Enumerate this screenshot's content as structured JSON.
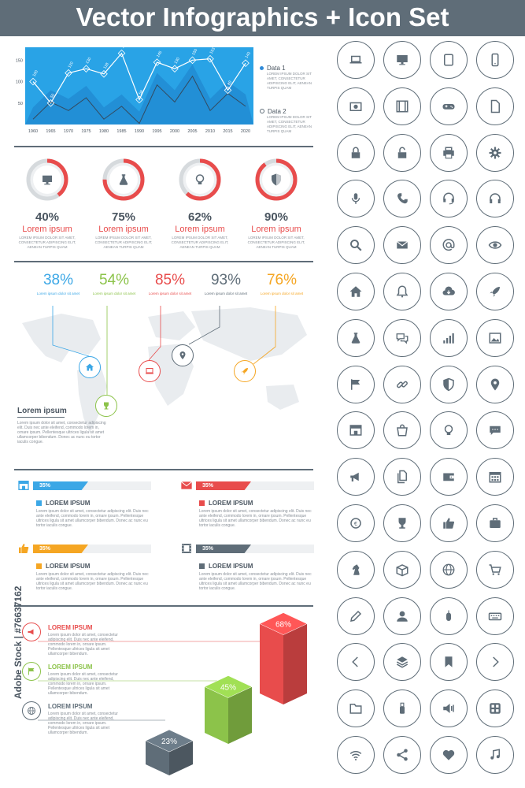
{
  "title": "Vector Infographics + Icon Set",
  "chart_data": {
    "type": "area",
    "categories": [
      "1960",
      "1965",
      "1970",
      "1975",
      "1980",
      "1985",
      "1990",
      "1995",
      "2000",
      "2005",
      "2010",
      "2015",
      "2020"
    ],
    "yticks": [
      "150",
      "100",
      "50"
    ],
    "series": [
      {
        "name": "Data 1",
        "values": [
          100,
          50,
          120,
          130,
          118,
          166,
          58,
          145,
          130,
          150,
          153,
          80,
          143
        ]
      },
      {
        "name": "Data 2",
        "values": [
          40,
          80,
          60,
          90,
          40,
          70,
          30,
          120,
          80,
          140,
          60,
          100,
          70
        ]
      }
    ],
    "labels": [
      "100",
      "50",
      "120",
      "130",
      "118",
      "166",
      "58",
      "145",
      "130",
      "150",
      "153",
      "80",
      "143"
    ],
    "legend": [
      {
        "name": "Data 1",
        "desc": "LOREM IPSUM DOLOR SIT AMET, CONSECTETUR ADIPISCING ELIT, AENEAN TURPIS QUAM",
        "color": "#2f8ad8"
      },
      {
        "name": "Data 2",
        "desc": "LOREM IPSUM DOLOR SIT AMET, CONSECTETUR ADIPISCING ELIT, AENEAN TURPIS QUAM",
        "color": "#5f6d78"
      }
    ]
  },
  "donuts": [
    {
      "pct": "40%",
      "value": 40,
      "label": "Lorem ipsum",
      "text": "LOREM IPSUM DOLOR SIT AMET, CONSECTETUR ADIPISCING ELIT, AENEAN TURPIS QUAM",
      "icon": "monitor-icon"
    },
    {
      "pct": "75%",
      "value": 75,
      "label": "Lorem ipsum",
      "text": "LOREM IPSUM DOLOR SIT AMET, CONSECTETUR ADIPISCING ELIT, AENEAN TURPIS QUAM",
      "icon": "flask-icon"
    },
    {
      "pct": "62%",
      "value": 62,
      "label": "Lorem ipsum",
      "text": "LOREM IPSUM DOLOR SIT AMET, CONSECTETUR ADIPISCING ELIT, AENEAN TURPIS QUAM",
      "icon": "bulb-icon"
    },
    {
      "pct": "90%",
      "value": 90,
      "label": "Lorem ipsum",
      "text": "LOREM IPSUM DOLOR SIT AMET, CONSECTETUR ADIPISCING ELIT, AENEAN TURPIS QUAM",
      "icon": "shield-icon"
    }
  ],
  "map_stats": [
    {
      "pct": "38%",
      "sub": "Lorem ipsum dolor sit amet",
      "color": "#3ba7e6"
    },
    {
      "pct": "54%",
      "sub": "Lorem ipsum dolor sit amet",
      "color": "#8cc34a"
    },
    {
      "pct": "85%",
      "sub": "Lorem ipsum dolor sit amet",
      "color": "#e84c4c"
    },
    {
      "pct": "93%",
      "sub": "Lorem ipsum dolor sit amet",
      "color": "#5f6d78"
    },
    {
      "pct": "76%",
      "sub": "Lorem ipsum dolor sit amet",
      "color": "#f5a623"
    }
  ],
  "map_text": {
    "title": "Lorem ipsum",
    "body": "Lorem ipsum dolor sit amet, consectetur adipiscing elit. Duis nec ante eleifend, commodo lorem in, ornare ipsum. Pellentesque ultrices ligula sit amet ullamcorper bibendum. Donec ac nunc eu tortor iaculis congue."
  },
  "bars": [
    {
      "pct": "35%",
      "value": 35,
      "title": "LOREM IPSUM",
      "color": "#3ba7e6",
      "icon": "shop-icon",
      "text": "Lorem ipsum dolor sit amet, consectetur adipiscing elit. Duis nec ante eleifend, commodo lorem in, ornare ipsum. Pellentesque ultrices ligula sit amet ullamcorper bibendum. Donec ac nunc eu tortor iaculis congue."
    },
    {
      "pct": "35%",
      "value": 35,
      "title": "LOREM IPSUM",
      "color": "#e84c4c",
      "icon": "mail-icon",
      "text": "Lorem ipsum dolor sit amet, consectetur adipiscing elit. Duis nec ante eleifend, commodo lorem in, ornare ipsum. Pellentesque ultrices ligula sit amet ullamcorper bibendum. Donec ac nunc eu tortor iaculis congue."
    },
    {
      "pct": "35%",
      "value": 35,
      "title": "LOREM IPSUM",
      "color": "#f5a623",
      "icon": "thumbs-up-icon",
      "text": "Lorem ipsum dolor sit amet, consectetur adipiscing elit. Duis nec ante eleifend, commodo lorem in, ornare ipsum. Pellentesque ultrices ligula sit amet ullamcorper bibendum. Donec ac nunc eu tortor iaculis congue."
    },
    {
      "pct": "35%",
      "value": 35,
      "title": "LOREM IPSUM",
      "color": "#5f6d78",
      "icon": "film-icon",
      "text": "Lorem ipsum dolor sit amet, consectetur adipiscing elit. Duis nec ante eleifend, commodo lorem in, ornare ipsum. Pellentesque ultrices ligula sit amet ullamcorper bibendum. Donec ac nunc eu tortor iaculis congue."
    }
  ],
  "iso": {
    "items": [
      {
        "title": "LOREM IPSUM",
        "color": "#e84c4c",
        "icon": "megaphone-icon",
        "text": "Lorem ipsum dolor sit amet, consectetur adipiscing elit. Duis nec ante eleifend, commodo lorem in, ornare ipsum. Pellentesque ultrices ligula sit amet ullamcorper bibendum."
      },
      {
        "title": "LOREM IPSUM",
        "color": "#8cc34a",
        "icon": "flag-icon",
        "text": "Lorem ipsum dolor sit amet, consectetur adipiscing elit. Duis nec ante eleifend, commodo lorem in, ornare ipsum. Pellentesque ultrices ligula sit amet ullamcorper bibendum."
      },
      {
        "title": "LOREM IPSUM",
        "color": "#5f6d78",
        "icon": "globe-icon",
        "text": "Lorem ipsum dolor sit amet, consectetur adipiscing elit. Duis nec ante eleifend, commodo lorem in, ornare ipsum. Pellentesque ultrices ligula sit amet ullamcorper bibendum."
      }
    ],
    "boxes": [
      {
        "pct": "23%",
        "value": 23,
        "color": "#5f6d78"
      },
      {
        "pct": "45%",
        "value": 45,
        "color": "#8cc34a"
      },
      {
        "pct": "68%",
        "value": 68,
        "color": "#e84c4c"
      }
    ]
  },
  "watermark": "Adobe Stock | #76637162",
  "icons": [
    "laptop-icon",
    "desktop-icon",
    "tablet-icon",
    "phone-icon",
    "camera-icon",
    "film-icon",
    "gamepad-icon",
    "document-icon",
    "lock-icon",
    "unlock-icon",
    "printer-icon",
    "gear-icon",
    "microphone-icon",
    "phone-handset-icon",
    "headset-icon",
    "headphones-icon",
    "search-icon",
    "envelope-icon",
    "at-sign-icon",
    "eye-icon",
    "home-icon",
    "bell-icon",
    "cloud-download-icon",
    "rocket-icon",
    "flask-icon",
    "chat-bubbles-icon",
    "signal-bars-icon",
    "image-icon",
    "flag-icon",
    "link-icon",
    "shield-icon",
    "map-pin-icon",
    "shop-icon",
    "shopping-bag-icon",
    "bulb-icon",
    "speech-bubble-icon",
    "megaphone-icon",
    "files-icon",
    "wallet-icon",
    "calendar-icon",
    "currency-exchange-icon",
    "trophy-icon",
    "thumbs-up-icon",
    "suitcase-icon",
    "chess-knight-icon",
    "box-icon",
    "globe-icon",
    "cart-icon",
    "pencil-icon",
    "user-icon",
    "mouse-icon",
    "keyboard-icon",
    "chevron-left-icon",
    "layers-icon",
    "bookmark-icon",
    "chevron-right-icon",
    "folder-icon",
    "usb-icon",
    "speaker-icon",
    "app-grid-icon",
    "wifi-icon",
    "share-icon",
    "heart-icon",
    "music-note-icon"
  ]
}
